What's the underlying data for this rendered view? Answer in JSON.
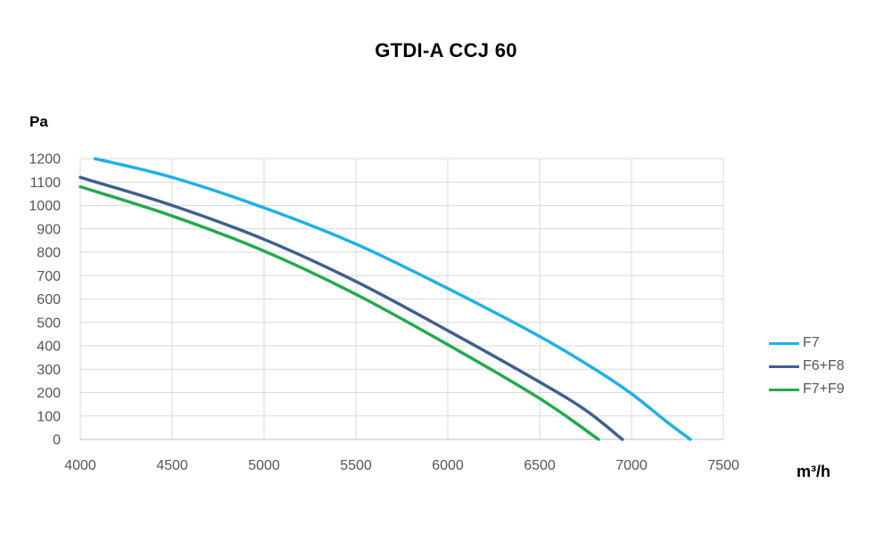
{
  "chart_data": {
    "type": "line",
    "title": "GTDI-A CCJ 60",
    "ylabel": "Pa",
    "xlabel": "m³/h",
    "xlim": [
      4000,
      7500
    ],
    "ylim": [
      0,
      1200
    ],
    "x_ticks": [
      4000,
      4500,
      5000,
      5500,
      6000,
      6500,
      7000,
      7500
    ],
    "y_ticks": [
      0,
      100,
      200,
      300,
      400,
      500,
      600,
      700,
      800,
      900,
      1000,
      1100,
      1200
    ],
    "grid": true,
    "legend_position": "right",
    "series": [
      {
        "name": "F7",
        "color": "#1EB1E8",
        "points": [
          [
            4080,
            1200
          ],
          [
            4500,
            1120
          ],
          [
            5000,
            990
          ],
          [
            5500,
            835
          ],
          [
            6000,
            645
          ],
          [
            6500,
            440
          ],
          [
            6800,
            300
          ],
          [
            7000,
            195
          ],
          [
            7200,
            70
          ],
          [
            7320,
            0
          ]
        ]
      },
      {
        "name": "F6+F8",
        "color": "#3F5F8F",
        "points": [
          [
            4000,
            1120
          ],
          [
            4500,
            1000
          ],
          [
            5000,
            855
          ],
          [
            5500,
            675
          ],
          [
            6000,
            465
          ],
          [
            6500,
            245
          ],
          [
            6750,
            125
          ],
          [
            6950,
            0
          ]
        ]
      },
      {
        "name": "F7+F9",
        "color": "#22AA4E",
        "points": [
          [
            4000,
            1080
          ],
          [
            4500,
            955
          ],
          [
            5000,
            805
          ],
          [
            5500,
            620
          ],
          [
            6000,
            405
          ],
          [
            6500,
            175
          ],
          [
            6820,
            0
          ]
        ]
      }
    ]
  }
}
